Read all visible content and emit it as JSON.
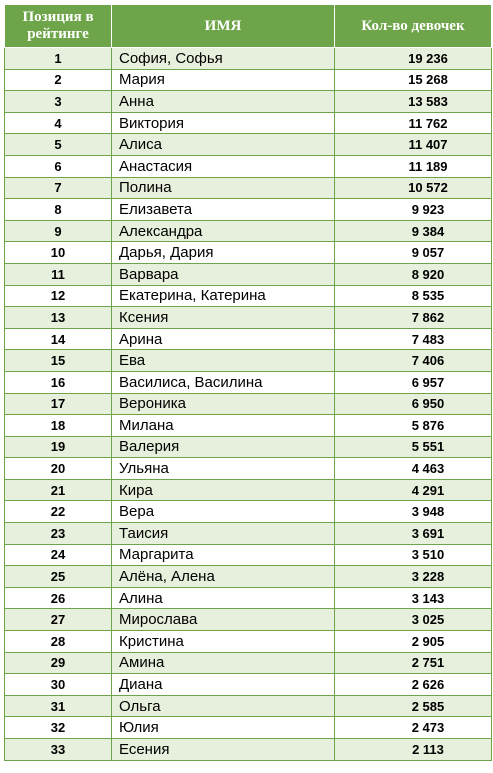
{
  "header": {
    "rank": "Позиция в рейтинге",
    "name": "ИМЯ",
    "count": "Кол-во девочек"
  },
  "rows": [
    {
      "rank": "1",
      "name": "София, Софья",
      "count": "19 236"
    },
    {
      "rank": "2",
      "name": "Мария",
      "count": "15 268"
    },
    {
      "rank": "3",
      "name": "Анна",
      "count": "13 583"
    },
    {
      "rank": "4",
      "name": "Виктория",
      "count": "11 762"
    },
    {
      "rank": "5",
      "name": "Алиса",
      "count": "11 407"
    },
    {
      "rank": "6",
      "name": "Анастасия",
      "count": "11 189"
    },
    {
      "rank": "7",
      "name": "Полина",
      "count": "10 572"
    },
    {
      "rank": "8",
      "name": "Елизавета",
      "count": "9 923"
    },
    {
      "rank": "9",
      "name": "Александра",
      "count": "9 384"
    },
    {
      "rank": "10",
      "name": "Дарья, Дария",
      "count": "9 057"
    },
    {
      "rank": "11",
      "name": "Варвара",
      "count": "8 920"
    },
    {
      "rank": "12",
      "name": "Екатерина, Катерина",
      "count": "8 535"
    },
    {
      "rank": "13",
      "name": "Ксения",
      "count": "7 862"
    },
    {
      "rank": "14",
      "name": "Арина",
      "count": "7 483"
    },
    {
      "rank": "15",
      "name": "Ева",
      "count": "7 406"
    },
    {
      "rank": "16",
      "name": "Василиса, Василина",
      "count": "6 957"
    },
    {
      "rank": "17",
      "name": "Вероника",
      "count": "6 950"
    },
    {
      "rank": "18",
      "name": "Милана",
      "count": "5 876"
    },
    {
      "rank": "19",
      "name": "Валерия",
      "count": "5 551"
    },
    {
      "rank": "20",
      "name": "Ульяна",
      "count": "4 463"
    },
    {
      "rank": "21",
      "name": "Кира",
      "count": "4 291"
    },
    {
      "rank": "22",
      "name": "Вера",
      "count": "3 948"
    },
    {
      "rank": "23",
      "name": "Таисия",
      "count": "3 691"
    },
    {
      "rank": "24",
      "name": "Маргарита",
      "count": "3 510"
    },
    {
      "rank": "25",
      "name": "Алёна, Алена",
      "count": "3 228"
    },
    {
      "rank": "26",
      "name": "Алина",
      "count": "3 143"
    },
    {
      "rank": "27",
      "name": "Мирослава",
      "count": "3 025"
    },
    {
      "rank": "28",
      "name": "Кристина",
      "count": "2 905"
    },
    {
      "rank": "29",
      "name": "Амина",
      "count": "2 751"
    },
    {
      "rank": "30",
      "name": "Диана",
      "count": "2 626"
    },
    {
      "rank": "31",
      "name": "Ольга",
      "count": "2 585"
    },
    {
      "rank": "32",
      "name": "Юлия",
      "count": "2 473"
    },
    {
      "rank": "33",
      "name": "Есения",
      "count": "2 113"
    }
  ],
  "colors": {
    "header_bg": "#6fa54a",
    "header_text": "#ffffff",
    "row_alt_bg": "#e7f0dc",
    "border": "#6fa54a"
  }
}
